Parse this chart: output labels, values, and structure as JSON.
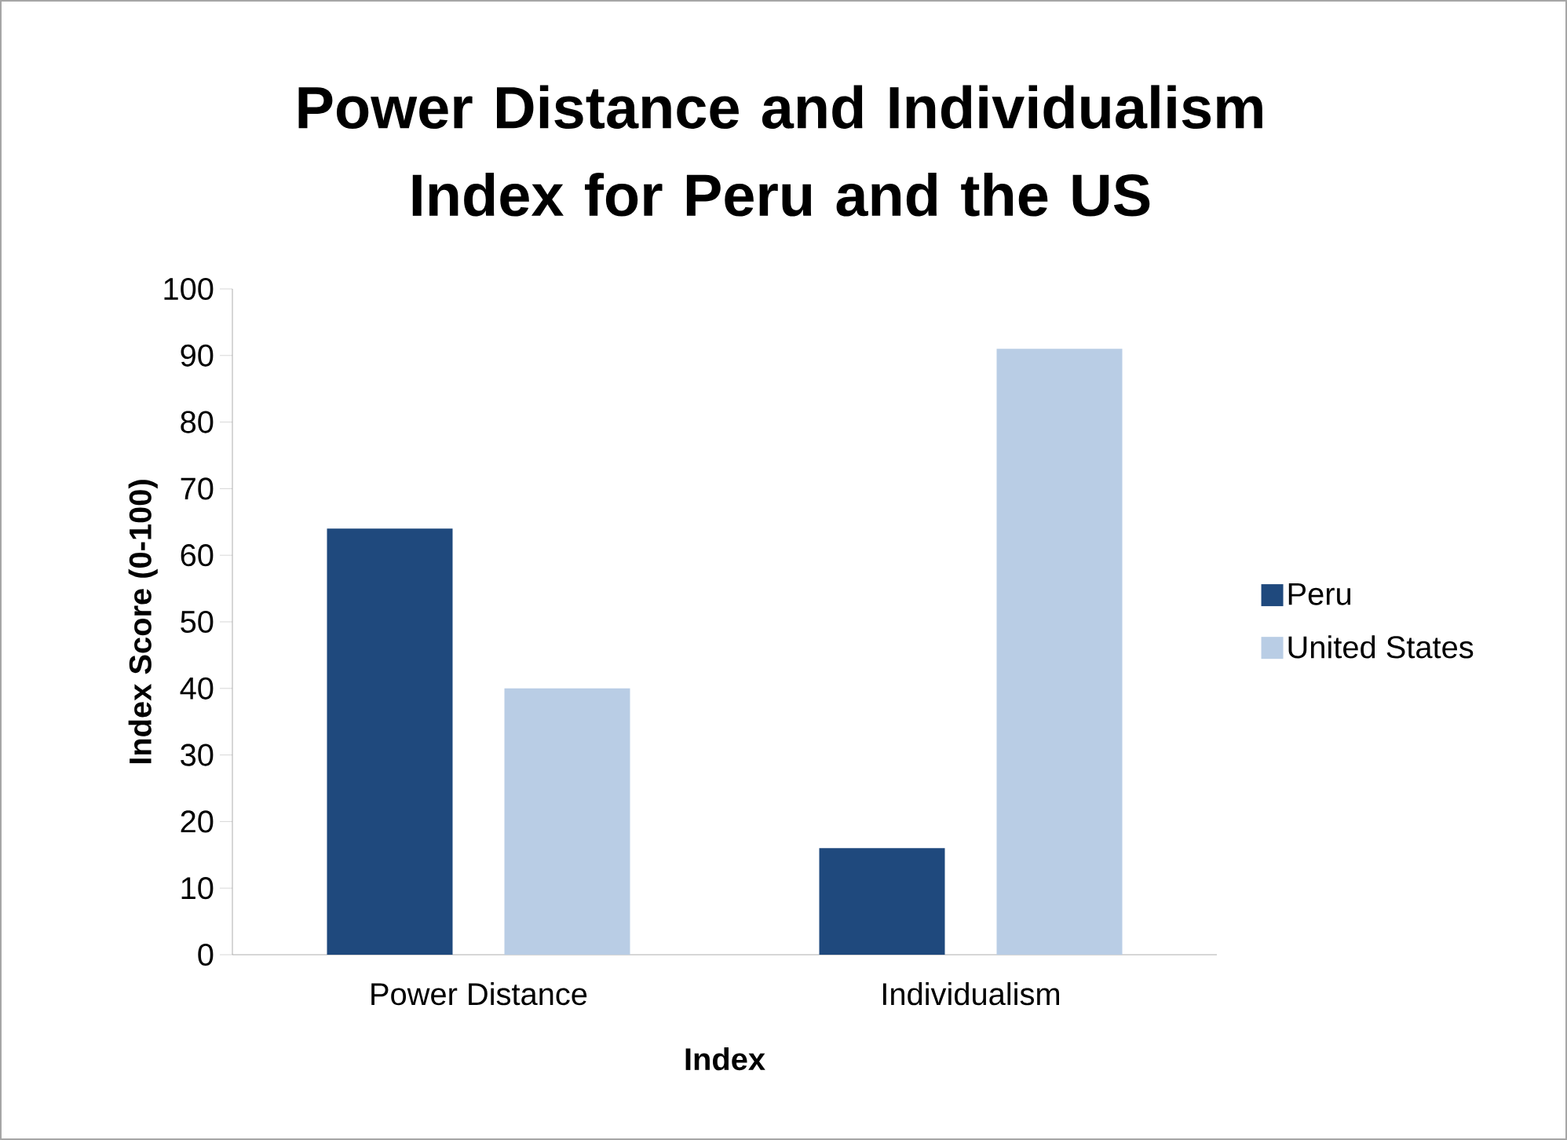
{
  "chart_data": {
    "type": "bar",
    "title": "Power Distance and Individualism Index for Peru and the US",
    "xlabel": "Index",
    "ylabel": "Index Score (0-100)",
    "categories": [
      "Power Distance",
      "Individualism"
    ],
    "series": [
      {
        "name": "Peru",
        "color": "#1f497d",
        "values": [
          64,
          16
        ]
      },
      {
        "name": "United States",
        "color": "#b9cde5",
        "values": [
          40,
          91
        ]
      }
    ],
    "ylim": [
      0,
      100
    ],
    "yticks": [
      0,
      10,
      20,
      30,
      40,
      50,
      60,
      70,
      80,
      90,
      100
    ],
    "legend": "right"
  }
}
